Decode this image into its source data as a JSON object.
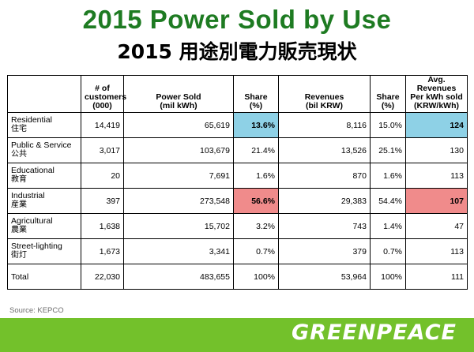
{
  "title_en": "2015 Power Sold by Use",
  "title_zh": "2015 用途別電力販売現状",
  "table": {
    "headers": [
      {
        "lines": [
          ""
        ]
      },
      {
        "lines": [
          "# of",
          "customers",
          "(000)"
        ]
      },
      {
        "lines": [
          "Power Sold",
          "(mil kWh)"
        ]
      },
      {
        "lines": [
          "Share",
          "(%)"
        ]
      },
      {
        "lines": [
          "Revenues",
          "(bil KRW)"
        ]
      },
      {
        "lines": [
          "Share",
          "(%)"
        ]
      },
      {
        "lines": [
          "Avg. Revenues",
          "Per kWh sold",
          "(KRW/kWh)"
        ]
      }
    ],
    "rows": [
      {
        "label": "Residential",
        "label_zh": "住宅",
        "customers": "14,419",
        "power_sold": "65,619",
        "share_power": "13.6%",
        "revenues": "8,116",
        "share_rev": "15.0%",
        "avg": "124",
        "highlight": "blue"
      },
      {
        "label": "Public & Service",
        "label_zh": "公共",
        "customers": "3,017",
        "power_sold": "103,679",
        "share_power": "21.4%",
        "revenues": "13,526",
        "share_rev": "25.1%",
        "avg": "130",
        "highlight": ""
      },
      {
        "label": "Educational",
        "label_zh": "教育",
        "customers": "20",
        "power_sold": "7,691",
        "share_power": "1.6%",
        "revenues": "870",
        "share_rev": "1.6%",
        "avg": "113",
        "highlight": ""
      },
      {
        "label": "Industrial",
        "label_zh": "産業",
        "customers": "397",
        "power_sold": "273,548",
        "share_power": "56.6%",
        "revenues": "29,383",
        "share_rev": "54.4%",
        "avg": "107",
        "highlight": "red"
      },
      {
        "label": "Agricultural",
        "label_zh": "農業",
        "customers": "1,638",
        "power_sold": "15,702",
        "share_power": "3.2%",
        "revenues": "743",
        "share_rev": "1.4%",
        "avg": "47",
        "highlight": ""
      },
      {
        "label": "Street-lighting",
        "label_zh": "街灯",
        "customers": "1,673",
        "power_sold": "3,341",
        "share_power": "0.7%",
        "revenues": "379",
        "share_rev": "0.7%",
        "avg": "113",
        "highlight": ""
      },
      {
        "label": "Total",
        "label_zh": "",
        "customers": "22,030",
        "power_sold": "483,655",
        "share_power": "100%",
        "revenues": "53,964",
        "share_rev": "100%",
        "avg": "111",
        "highlight": ""
      }
    ]
  },
  "source": "Source: KEPCO",
  "logo": "GREENPEACE",
  "colors": {
    "title_green": "#1e7b22",
    "highlight_blue": "#8ed1e6",
    "highlight_red": "#f08b8b",
    "footer_green": "#73c12b"
  }
}
